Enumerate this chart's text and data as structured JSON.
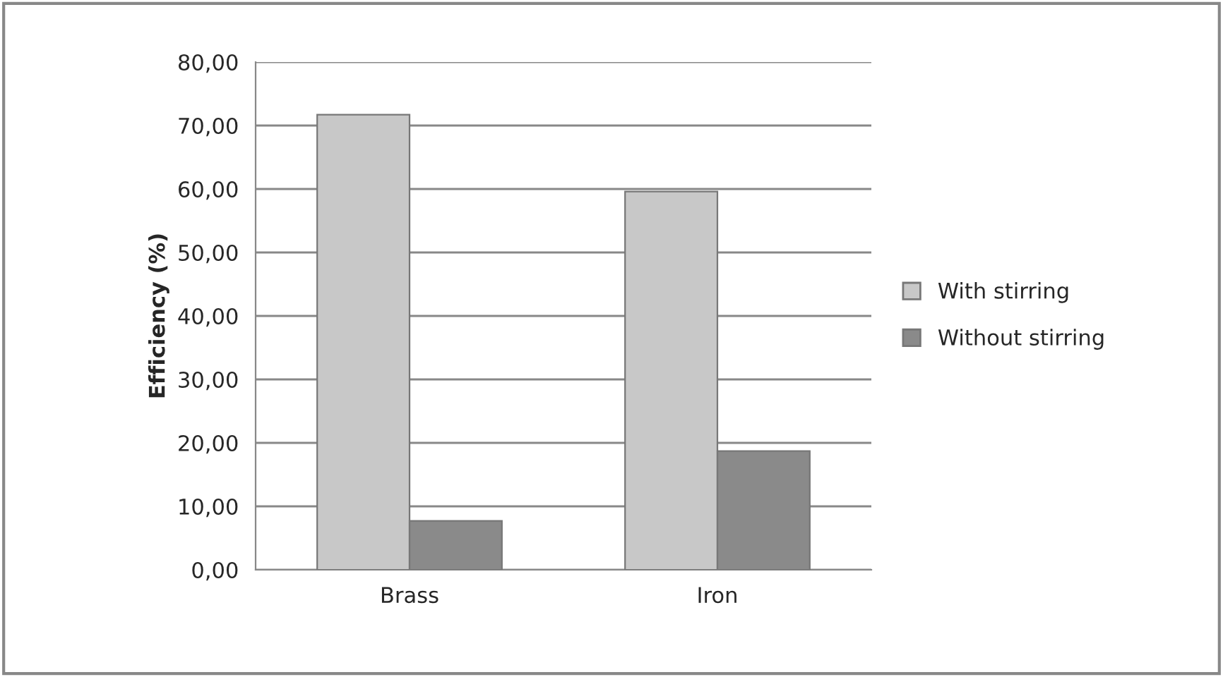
{
  "chart_data": {
    "type": "bar",
    "ylabel": "Efficiency (%)",
    "categories": [
      "Brass",
      "Iron"
    ],
    "series": [
      {
        "name": "With stirring",
        "color": "#c8c8c8",
        "values": [
          71.7,
          59.6
        ]
      },
      {
        "name": "Without stirring",
        "color": "#8a8a8a",
        "values": [
          7.7,
          18.7
        ]
      }
    ],
    "ylim": [
      0,
      80
    ],
    "yticks": [
      {
        "value": 0,
        "label": "0,00"
      },
      {
        "value": 10,
        "label": "10,00"
      },
      {
        "value": 20,
        "label": "20,00"
      },
      {
        "value": 30,
        "label": "30,00"
      },
      {
        "value": 40,
        "label": "40,00"
      },
      {
        "value": 50,
        "label": "50,00"
      },
      {
        "value": 60,
        "label": "60,00"
      },
      {
        "value": 70,
        "label": "70,00"
      },
      {
        "value": 80,
        "label": "80,00"
      }
    ],
    "grid": "y",
    "legend": "right"
  }
}
